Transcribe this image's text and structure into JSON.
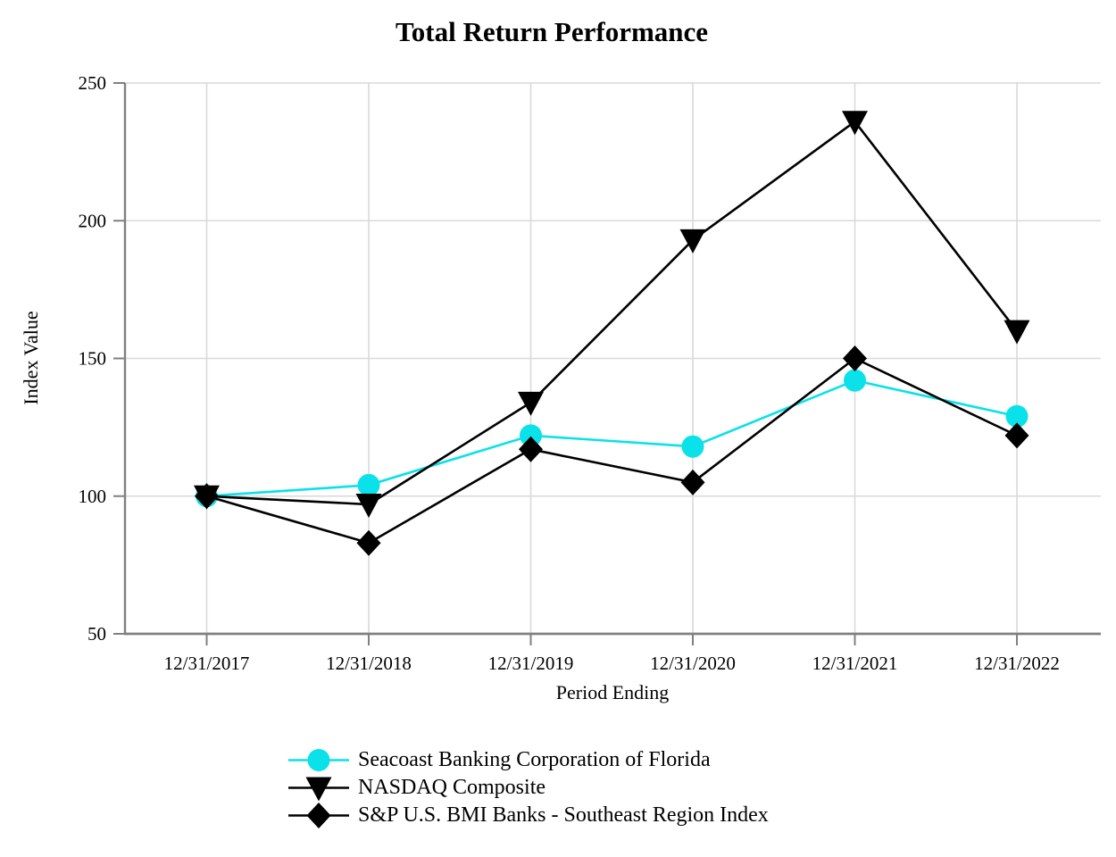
{
  "chart_data": {
    "type": "line",
    "title": "Total Return Performance",
    "xlabel": "Period Ending",
    "ylabel": "Index Value",
    "categories": [
      "12/31/2017",
      "12/31/2018",
      "12/31/2019",
      "12/31/2020",
      "12/31/2021",
      "12/31/2022"
    ],
    "y_ticks": [
      50,
      100,
      150,
      200,
      250
    ],
    "ylim": [
      50,
      250
    ],
    "grid": true,
    "legend_position": "bottom-left",
    "series": [
      {
        "name": "Seacoast Banking Corporation of Florida",
        "marker": "circle",
        "color": "#0ae1e8",
        "values": [
          100,
          104,
          122,
          118,
          142,
          129
        ]
      },
      {
        "name": "NASDAQ Composite",
        "marker": "triangle-down",
        "color": "#000000",
        "values": [
          100,
          97,
          134,
          193,
          236,
          160
        ]
      },
      {
        "name": "S&P U.S. BMI Banks - Southeast Region Index",
        "marker": "diamond",
        "color": "#000000",
        "values": [
          100,
          83,
          117,
          105,
          150,
          122
        ]
      }
    ]
  },
  "style": {
    "grid_color": "#d9d9d9",
    "axis_color": "#808080",
    "text_color": "#000000",
    "background": "#ffffff"
  }
}
